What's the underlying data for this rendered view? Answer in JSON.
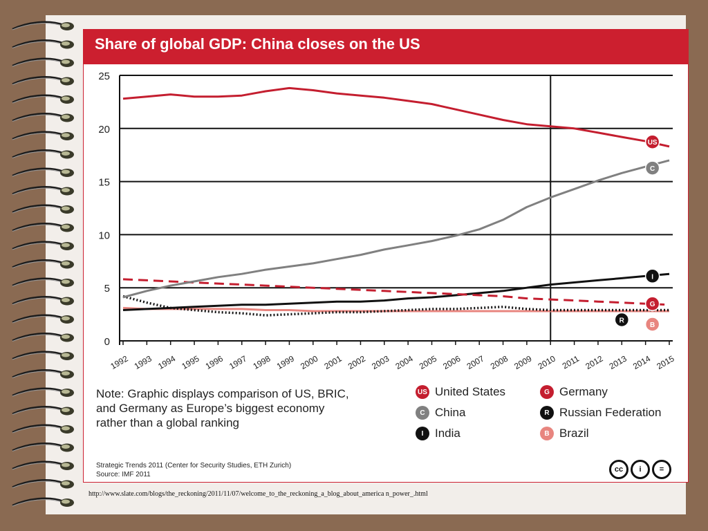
{
  "colors": {
    "us": "#c41e2f",
    "china": "#808080",
    "india": "#111111",
    "germany": "#c41e2f",
    "russia": "#111111",
    "brazil": "#e8857f"
  },
  "chart_data": {
    "type": "line",
    "title": "Share of global GDP: China closes on the US",
    "xlabel": "",
    "ylabel": "",
    "ylim": [
      0,
      25
    ],
    "yticks": [
      "0",
      "5",
      "10",
      "15",
      "20",
      "25"
    ],
    "x": [
      "1992",
      "1993",
      "1994",
      "1995",
      "1996",
      "1997",
      "1998",
      "1999",
      "2000",
      "2001",
      "2002",
      "2003",
      "2004",
      "2005",
      "2006",
      "2007",
      "2008",
      "2009",
      "2010",
      "2011",
      "2012",
      "2013",
      "2014",
      "2015"
    ],
    "projection_start": "2010",
    "grid": true,
    "series": [
      {
        "name": "United States",
        "key": "us",
        "badge": "US",
        "style": "solid",
        "values": [
          22.8,
          23.0,
          23.2,
          23.0,
          23.0,
          23.1,
          23.5,
          23.8,
          23.6,
          23.3,
          23.1,
          22.9,
          22.6,
          22.3,
          21.8,
          21.3,
          20.8,
          20.4,
          20.2,
          20.0,
          19.6,
          19.2,
          18.8,
          18.3
        ]
      },
      {
        "name": "China",
        "key": "china",
        "badge": "C",
        "style": "solid",
        "values": [
          4.1,
          4.7,
          5.2,
          5.6,
          6.0,
          6.3,
          6.7,
          7.0,
          7.3,
          7.7,
          8.1,
          8.6,
          9.0,
          9.4,
          9.9,
          10.5,
          11.4,
          12.6,
          13.5,
          14.3,
          15.1,
          15.8,
          16.4,
          17.0
        ]
      },
      {
        "name": "India",
        "key": "india",
        "badge": "I",
        "style": "solid",
        "values": [
          2.9,
          3.0,
          3.1,
          3.2,
          3.3,
          3.4,
          3.4,
          3.5,
          3.6,
          3.7,
          3.7,
          3.8,
          4.0,
          4.1,
          4.3,
          4.5,
          4.7,
          5.0,
          5.3,
          5.5,
          5.7,
          5.9,
          6.1,
          6.3
        ]
      },
      {
        "name": "Germany",
        "key": "germany",
        "badge": "G",
        "style": "dashed",
        "values": [
          5.8,
          5.7,
          5.6,
          5.5,
          5.4,
          5.3,
          5.2,
          5.1,
          5.0,
          4.9,
          4.8,
          4.7,
          4.6,
          4.5,
          4.4,
          4.3,
          4.2,
          4.0,
          3.9,
          3.8,
          3.7,
          3.6,
          3.5,
          3.4
        ]
      },
      {
        "name": "Russian Federation",
        "key": "russia",
        "badge": "R",
        "style": "dotted",
        "values": [
          4.2,
          3.6,
          3.1,
          2.9,
          2.7,
          2.6,
          2.4,
          2.5,
          2.6,
          2.7,
          2.7,
          2.8,
          2.9,
          3.0,
          3.0,
          3.1,
          3.2,
          3.0,
          2.9,
          2.9,
          2.9,
          2.9,
          2.9,
          2.9
        ]
      },
      {
        "name": "Brazil",
        "key": "brazil",
        "badge": "B",
        "style": "solid",
        "values": [
          3.1,
          3.0,
          3.0,
          3.0,
          3.0,
          3.0,
          2.9,
          2.9,
          2.8,
          2.8,
          2.8,
          2.8,
          2.8,
          2.8,
          2.8,
          2.8,
          2.8,
          2.8,
          2.8,
          2.8,
          2.8,
          2.8,
          2.8,
          2.8
        ]
      }
    ]
  },
  "note": {
    "line1": "Note: Graphic displays comparison of US, BRIC,",
    "line2": "and Germany as Europe’s biggest economy",
    "line3": "rather than a global ranking"
  },
  "legend": [
    {
      "badge": "US",
      "label": "United States",
      "color": "#c41e2f"
    },
    {
      "badge": "G",
      "label": "Germany",
      "color": "#c41e2f"
    },
    {
      "badge": "C",
      "label": "China",
      "color": "#808080"
    },
    {
      "badge": "R",
      "label": "Russian Federation",
      "color": "#111111"
    },
    {
      "badge": "I",
      "label": "India",
      "color": "#111111"
    },
    {
      "badge": "B",
      "label": "Brazil",
      "color": "#e8857f"
    }
  ],
  "source": {
    "line1": "Strategic Trends 2011 (Center for Security Studies, ETH Zurich)",
    "line2": "Source: IMF 2011"
  },
  "license_icons": [
    "cc-icon",
    "by-icon",
    "nd-icon"
  ],
  "license_glyphs": {
    "cc": "cc",
    "by": "i",
    "nd": "="
  },
  "url": "http://www.slate.com/blogs/the_reckoning/2011/11/07/welcome_to_the_reckoning_a_blog_about_america n_power_.html"
}
